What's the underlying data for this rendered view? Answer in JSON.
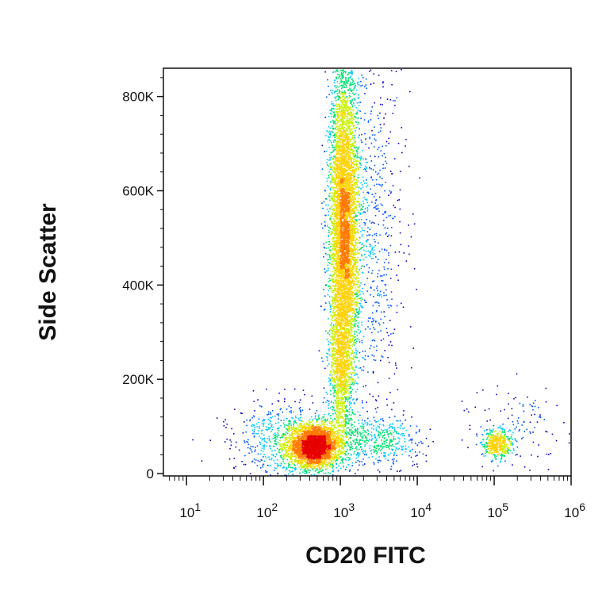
{
  "chart_data": {
    "type": "scatter",
    "style": "flow-cytometry pseudocolor density dot plot",
    "xlabel": "CD20 FITC",
    "ylabel": "Side Scatter",
    "x_scale": "log",
    "xlim": [
      5,
      1000000
    ],
    "ylim": [
      -5000,
      860000
    ],
    "x_ticks": [
      {
        "value": 10,
        "base": "10",
        "exp": "1"
      },
      {
        "value": 100,
        "base": "10",
        "exp": "2"
      },
      {
        "value": 1000,
        "base": "10",
        "exp": "3"
      },
      {
        "value": 10000,
        "base": "10",
        "exp": "4"
      },
      {
        "value": 100000,
        "base": "10",
        "exp": "5"
      },
      {
        "value": 1000000,
        "base": "10",
        "exp": "6"
      }
    ],
    "y_ticks": [
      {
        "value": 0,
        "label": "0"
      },
      {
        "value": 200000,
        "label": "200K"
      },
      {
        "value": 400000,
        "label": "400K"
      },
      {
        "value": 600000,
        "label": "600K"
      },
      {
        "value": 800000,
        "label": "800K"
      }
    ],
    "grid": false,
    "density_colormap": [
      "#0a00c8",
      "#0055ff",
      "#00c8ff",
      "#00e070",
      "#c8f000",
      "#ffd200",
      "#ff7a00",
      "#e60000"
    ],
    "populations": [
      {
        "x_center": 450,
        "y_center": 60000,
        "x_spread_decades": 0.16,
        "y_spread": 22000,
        "count": 3200
      },
      {
        "x_center": 1100,
        "y_center": 520000,
        "x_spread_decades": 0.09,
        "y_spread": 175000,
        "count": 6000
      },
      {
        "x_center": 1000,
        "y_center": 220000,
        "x_spread_decades": 0.07,
        "y_spread": 90000,
        "count": 900
      },
      {
        "x_center": 2500,
        "y_center": 500000,
        "x_spread_decades": 0.22,
        "y_spread": 200000,
        "count": 700
      },
      {
        "x_center": 200,
        "y_center": 70000,
        "x_spread_decades": 0.35,
        "y_spread": 40000,
        "count": 700
      },
      {
        "x_center": 3000,
        "y_center": 70000,
        "x_spread_decades": 0.3,
        "y_spread": 25000,
        "count": 500
      },
      {
        "x_center": 105000,
        "y_center": 62000,
        "x_spread_decades": 0.1,
        "y_spread": 16000,
        "count": 450
      },
      {
        "x_center": 200000,
        "y_center": 100000,
        "x_spread_decades": 0.3,
        "y_spread": 45000,
        "count": 120
      }
    ]
  }
}
